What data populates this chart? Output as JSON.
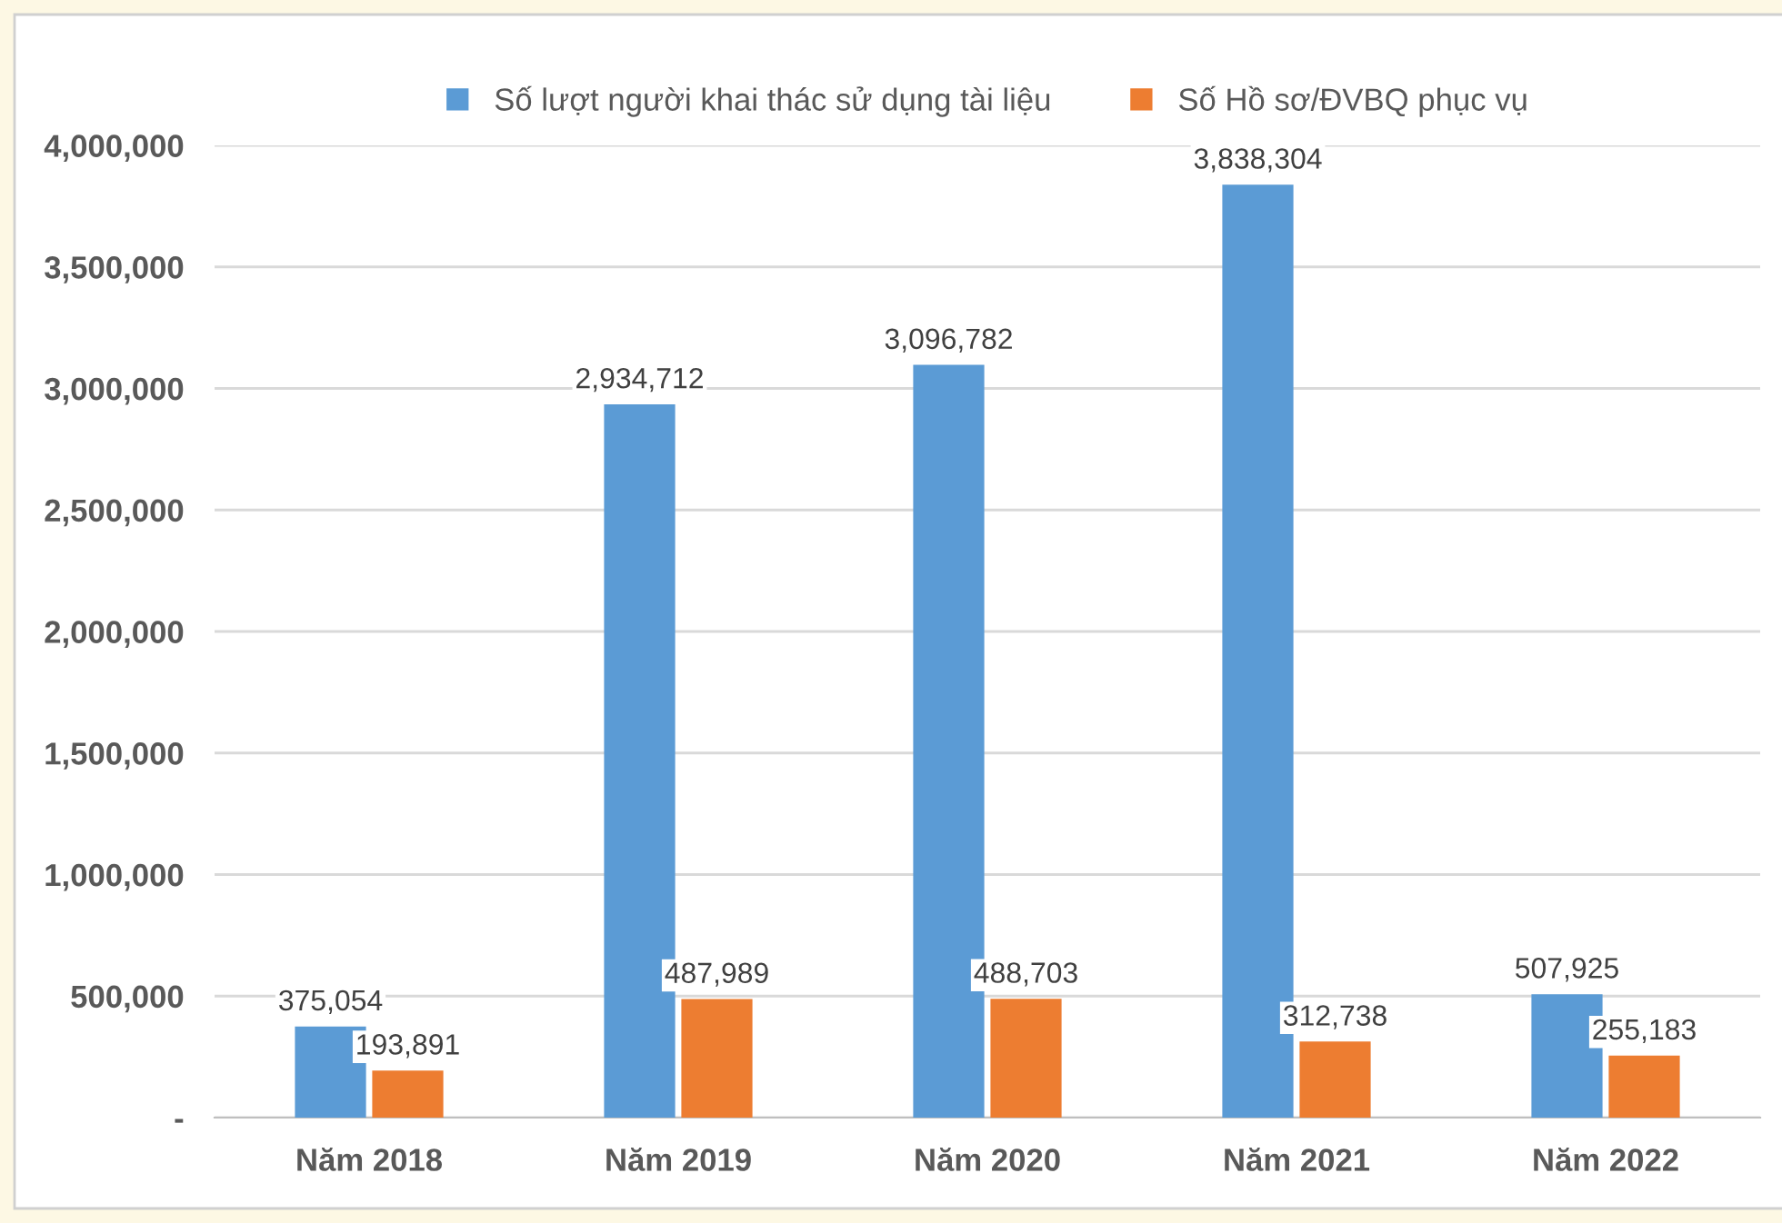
{
  "chart_data": {
    "type": "bar",
    "categories": [
      "Năm 2018",
      "Năm 2019",
      "Năm 2020",
      "Năm 2021",
      "Năm 2022"
    ],
    "series": [
      {
        "name": "Số lượt người khai thác sử dụng tài liệu",
        "color": "#5b9bd5",
        "values": [
          375054,
          2934712,
          3096782,
          3838304,
          507925
        ],
        "value_labels": [
          "375,054",
          "2,934,712",
          "3,096,782",
          "3,838,304",
          "507,925"
        ]
      },
      {
        "name": "Số Hồ sơ/ĐVBQ phục vụ",
        "color": "#ed7d31",
        "values": [
          193891,
          487989,
          488703,
          312738,
          255183
        ],
        "value_labels": [
          "193,891",
          "487,989",
          "488,703",
          "312,738",
          "255,183"
        ]
      }
    ],
    "ylim": [
      0,
      4000000
    ],
    "yticks": [
      {
        "value": 0,
        "label": "-"
      },
      {
        "value": 500000,
        "label": "500,000"
      },
      {
        "value": 1000000,
        "label": "1,000,000"
      },
      {
        "value": 1500000,
        "label": "1,500,000"
      },
      {
        "value": 2000000,
        "label": "2,000,000"
      },
      {
        "value": 2500000,
        "label": "2,500,000"
      },
      {
        "value": 3000000,
        "label": "3,000,000"
      },
      {
        "value": 3500000,
        "label": "3,500,000"
      },
      {
        "value": 4000000,
        "label": "4,000,000"
      }
    ],
    "grid": "y",
    "legend": "top"
  }
}
